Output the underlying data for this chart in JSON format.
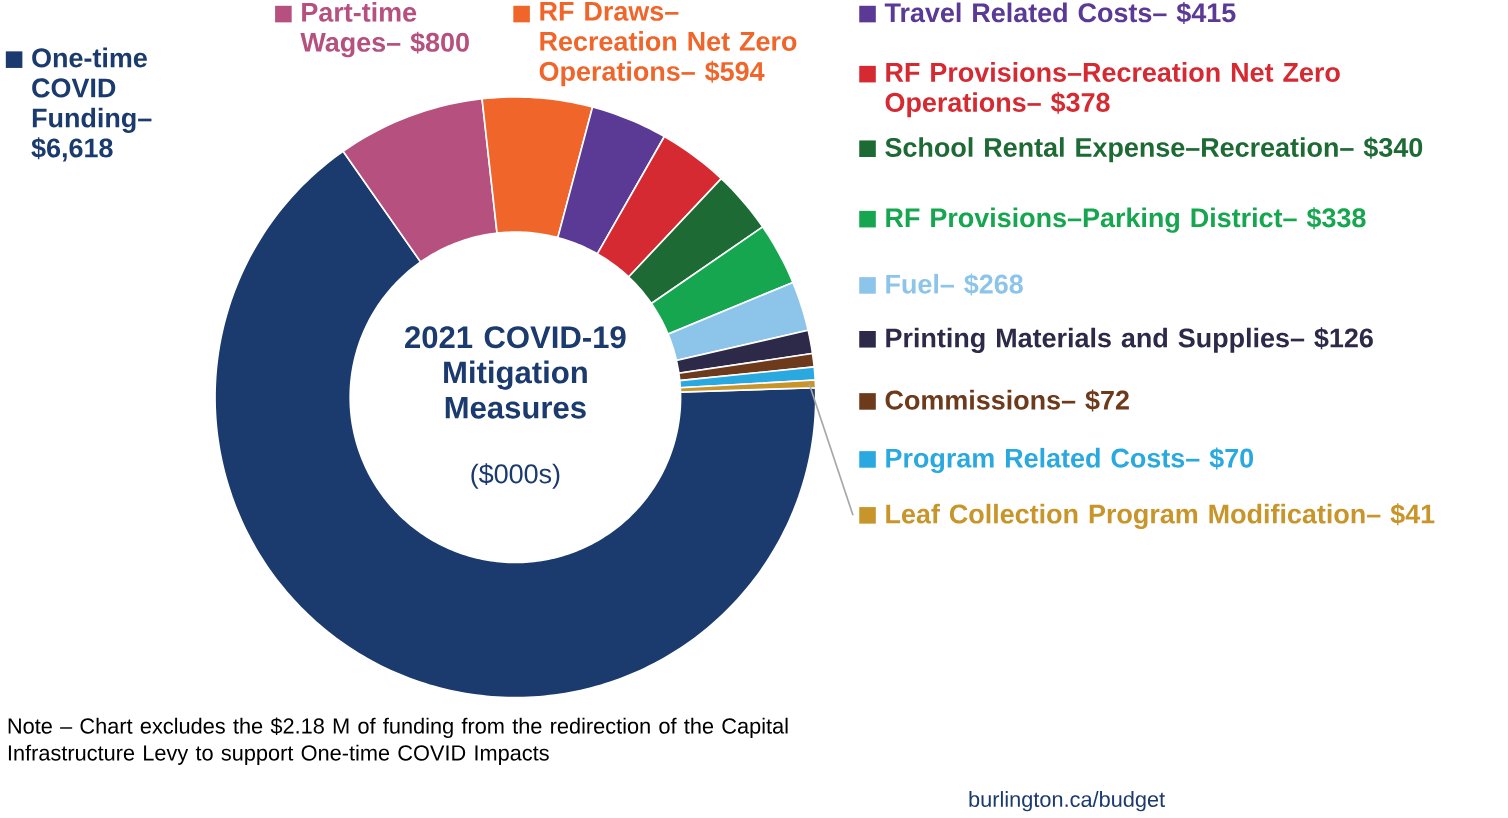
{
  "chart_data": {
    "type": "donut",
    "title": "2021 COVID-19 Mitigation Measures",
    "subtitle": "($000s)",
    "categories": [
      "One-time COVID Funding–",
      "Part-time Wages–",
      "RF Draws–Recreation Net Zero Operations–",
      "Travel Related Costs–",
      "RF Provisions–Recreation Net Zero Operations–",
      "School Rental Expense–Recreation–",
      "RF Provisions–Parking District–",
      "Fuel–",
      "Printing Materials and Supplies–",
      "Commissions–",
      "Program Related Costs–",
      "Leaf Collection Program Modification–"
    ],
    "values": [
      6618,
      800,
      594,
      415,
      378,
      340,
      338,
      268,
      126,
      72,
      70,
      41
    ],
    "value_labels": [
      "$6,618",
      "$800",
      "$594",
      "$415",
      "$378",
      "$340",
      "$338",
      "$268",
      "$126",
      "$72",
      "$70",
      "$41"
    ],
    "legend": "right",
    "colors": [
      "#1b3a6e",
      "#b5507f",
      "#f0652a",
      "#5a3a94",
      "#d62a32",
      "#1d6a35",
      "#16a650",
      "#8dc4ea",
      "#2c2a48",
      "#6e3a1c",
      "#2aa9e0",
      "#c8952b"
    ],
    "annotations": [
      "Note – Chart excludes the $2.18 M of funding from the redirection of the Capital Infrastructure Levy to support One-time COVID Impacts",
      "burlington.ca/budget"
    ]
  }
}
